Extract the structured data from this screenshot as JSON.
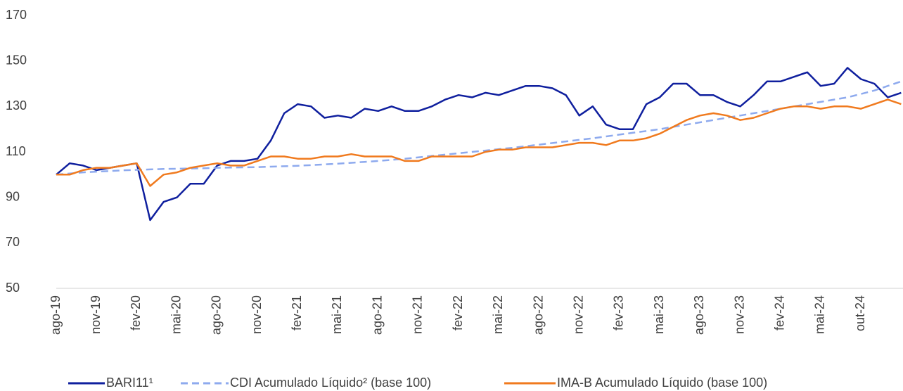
{
  "chart_data": {
    "type": "line",
    "categories": [
      "ago-19",
      null,
      null,
      "nov-19",
      null,
      null,
      "fev-20",
      null,
      null,
      "mai-20",
      null,
      null,
      "ago-20",
      null,
      null,
      "nov-20",
      null,
      null,
      "fev-21",
      null,
      null,
      "mai-21",
      null,
      null,
      "ago-21",
      null,
      null,
      "nov-21",
      null,
      null,
      "fev-22",
      null,
      null,
      "mai-22",
      null,
      null,
      "ago-22",
      null,
      null,
      "nov-22",
      null,
      null,
      "fev-23",
      null,
      null,
      "mai-23",
      null,
      null,
      "ago-23",
      null,
      null,
      "nov-23",
      null,
      null,
      "fev-24",
      null,
      null,
      "mai-24",
      null,
      null,
      "out-24",
      null,
      null,
      null
    ],
    "series": [
      {
        "name": "BARI11¹",
        "color": "#0f1f9e",
        "style": "solid",
        "values": [
          100,
          105,
          104,
          102,
          103,
          104,
          105,
          80,
          88,
          90,
          96,
          96,
          104,
          106,
          106,
          107,
          115,
          127,
          131,
          130,
          125,
          126,
          125,
          129,
          128,
          130,
          128,
          128,
          130,
          133,
          135,
          134,
          136,
          135,
          137,
          139,
          139,
          138,
          135,
          126,
          130,
          122,
          120,
          120,
          131,
          134,
          140,
          140,
          135,
          135,
          132,
          130,
          135,
          141,
          141,
          143,
          145,
          139,
          140,
          147,
          142,
          140,
          134,
          136
        ]
      },
      {
        "name": "CDI Acumulado Líquido² (base 100)",
        "color": "#8eaaee",
        "style": "dashed",
        "values": [
          100,
          100.5,
          101,
          101.3,
          101.6,
          101.9,
          102.1,
          102.3,
          102.5,
          102.6,
          102.7,
          102.8,
          103,
          103.1,
          103.2,
          103.3,
          103.5,
          103.7,
          103.9,
          104.2,
          104.5,
          104.8,
          105.2,
          105.6,
          106,
          106.5,
          107,
          107.6,
          108.2,
          108.8,
          109.4,
          110,
          110.6,
          111.2,
          111.8,
          112.5,
          113.2,
          113.9,
          114.6,
          115.3,
          116,
          116.8,
          117.6,
          118.4,
          119.2,
          120,
          121,
          122,
          123,
          124,
          125,
          126,
          127,
          128,
          129,
          130,
          131,
          132,
          133,
          134,
          135.5,
          137,
          139,
          141
        ]
      },
      {
        "name": "IMA-B Acumulado Líquido (base 100)",
        "color": "#f07a1e",
        "style": "solid",
        "values": [
          100,
          100,
          102,
          103,
          103,
          104,
          105,
          95,
          100,
          101,
          103,
          104,
          105,
          104,
          104,
          106,
          108,
          108,
          107,
          107,
          108,
          108,
          109,
          108,
          108,
          108,
          106,
          106,
          108,
          108,
          108,
          108,
          110,
          111,
          111,
          112,
          112,
          112,
          113,
          114,
          114,
          113,
          115,
          115,
          116,
          118,
          121,
          124,
          126,
          127,
          126,
          124,
          125,
          127,
          129,
          130,
          130,
          129,
          130,
          130,
          129,
          131,
          133,
          131
        ]
      }
    ],
    "ylim": [
      50,
      170
    ],
    "yticks": [
      50,
      70,
      90,
      110,
      130,
      150,
      170
    ],
    "grid": false,
    "legend": "bottom"
  }
}
